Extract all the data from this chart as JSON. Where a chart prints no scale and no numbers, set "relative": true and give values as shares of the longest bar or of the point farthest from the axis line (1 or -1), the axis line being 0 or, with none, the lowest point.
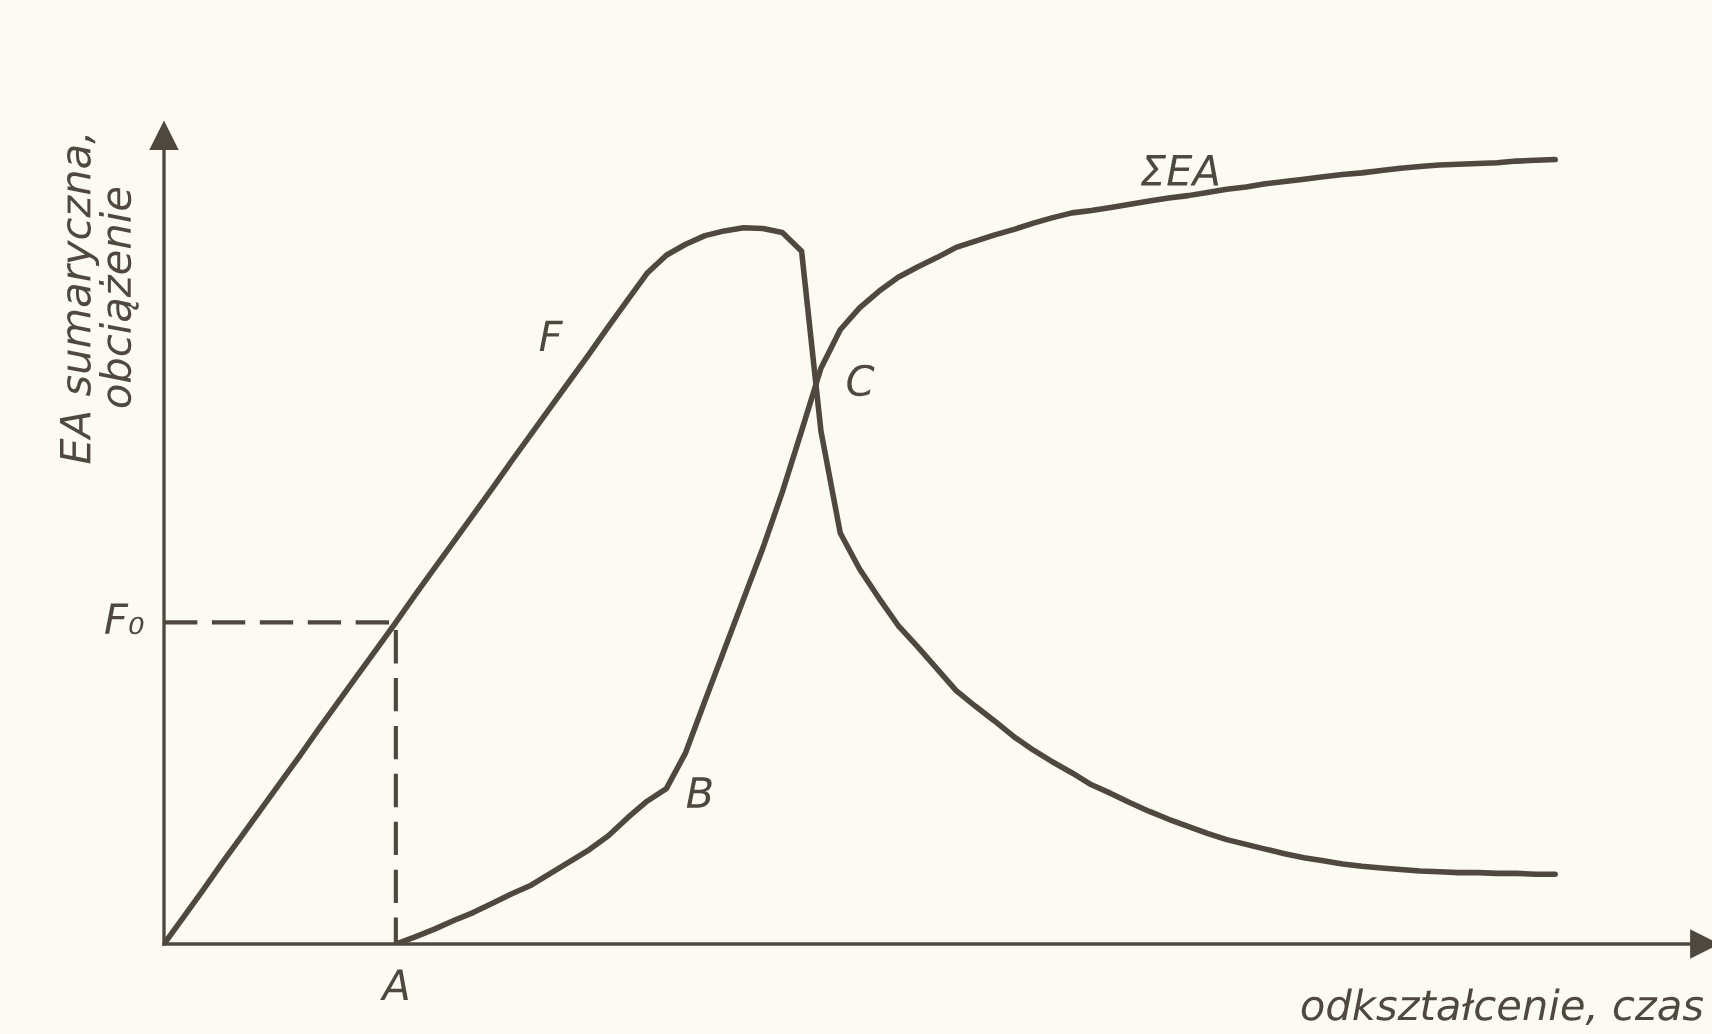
{
  "chart_data": {
    "type": "line",
    "relative": true,
    "line_style": "solid",
    "xlabel": "odkształcenie, czas",
    "ylabel": "EA sumaryczna,\nobciążenie",
    "categories": [
      null,
      null,
      null,
      null,
      null,
      null,
      null,
      null,
      null,
      null,
      null,
      null,
      null,
      null,
      null,
      null,
      null,
      null,
      null,
      null,
      null,
      null,
      null,
      null,
      null,
      null,
      null,
      null,
      null,
      null,
      null,
      null,
      null,
      null,
      null,
      null,
      null,
      null,
      null,
      null,
      null,
      null,
      null,
      null,
      null,
      null,
      null,
      null,
      null,
      null,
      null,
      null,
      null,
      null,
      null,
      null,
      null,
      null,
      null,
      null,
      null,
      null,
      null,
      null,
      null,
      null,
      null,
      null,
      null,
      null,
      null,
      null,
      null
    ],
    "series": [
      {
        "name": "F",
        "color": "#4f483f",
        "values": [
          0,
          0.034,
          0.068,
          0.103,
          0.137,
          0.171,
          0.205,
          0.239,
          0.274,
          0.308,
          0.342,
          0.376,
          0.41,
          0.445,
          0.479,
          0.513,
          0.547,
          0.581,
          0.616,
          0.65,
          0.684,
          0.718,
          0.752,
          0.787,
          0.821,
          0.855,
          0.878,
          0.892,
          0.903,
          0.909,
          0.913,
          0.912,
          0.907,
          0.883,
          0.654,
          0.524,
          0.478,
          0.441,
          0.406,
          0.379,
          0.351,
          0.323,
          0.303,
          0.284,
          0.264,
          0.247,
          0.232,
          0.218,
          0.203,
          0.192,
          0.18,
          0.169,
          0.159,
          0.15,
          0.141,
          0.133,
          0.127,
          0.121,
          0.115,
          0.11,
          0.106,
          0.102,
          0.099,
          0.097,
          0.095,
          0.093,
          0.092,
          0.091,
          0.091,
          0.09,
          0.09,
          0.089,
          0.089
        ]
      },
      {
        "name": "ΣEA",
        "color": "#4f483f",
        "values": [
          null,
          null,
          null,
          null,
          null,
          null,
          null,
          null,
          null,
          null,
          null,
          null,
          0,
          0.009,
          0.019,
          0.03,
          0.04,
          0.052,
          0.064,
          0.075,
          0.09,
          0.105,
          0.12,
          0.138,
          0.161,
          0.182,
          0.198,
          0.244,
          0.31,
          0.375,
          0.44,
          0.505,
          0.576,
          0.654,
          0.734,
          0.783,
          0.811,
          0.832,
          0.85,
          0.863,
          0.875,
          0.888,
          0.896,
          0.904,
          0.911,
          0.919,
          0.926,
          0.932,
          0.935,
          0.939,
          0.943,
          0.947,
          0.951,
          0.954,
          0.958,
          0.962,
          0.965,
          0.969,
          0.972,
          0.975,
          0.978,
          0.981,
          0.983,
          0.986,
          0.989,
          0.991,
          0.993,
          0.994,
          0.995,
          0.996,
          0.998,
          0.999,
          1
        ]
      }
    ],
    "ref_lines": [
      {
        "axis": "y",
        "value": 0.41,
        "label": "F₀",
        "color": "#4f483f",
        "line_style": "dashed"
      }
    ],
    "annotations": [
      "A",
      "B",
      "C"
    ]
  }
}
